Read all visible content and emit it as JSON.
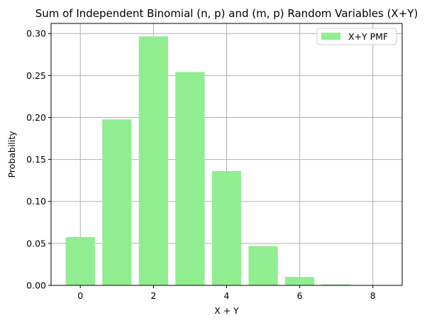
{
  "chart_data": {
    "type": "bar",
    "title": "Sum of Independent Binomial (n, p) and (m, p) Random Variables (X+Y)",
    "xlabel": "X + Y",
    "ylabel": "Probability",
    "x": [
      0,
      1,
      2,
      3,
      4,
      5,
      6,
      7,
      8
    ],
    "series": [
      {
        "name": "X+Y PMF",
        "values": [
          0.0576,
          0.1977,
          0.2965,
          0.2541,
          0.1361,
          0.0467,
          0.01,
          0.0012,
          0.0001
        ],
        "color": "#90ee90"
      }
    ],
    "xlim": [
      -0.8,
      8.8
    ],
    "ylim": [
      0,
      0.312
    ],
    "xticks": [
      0,
      2,
      4,
      6,
      8
    ],
    "xtick_labels": [
      "0",
      "2",
      "4",
      "6",
      "8"
    ],
    "yticks": [
      0.0,
      0.05,
      0.1,
      0.15,
      0.2,
      0.25,
      0.3
    ],
    "ytick_labels": [
      "0.00",
      "0.05",
      "0.10",
      "0.15",
      "0.20",
      "0.25",
      "0.30"
    ],
    "grid": true,
    "legend_position": "top-right"
  }
}
